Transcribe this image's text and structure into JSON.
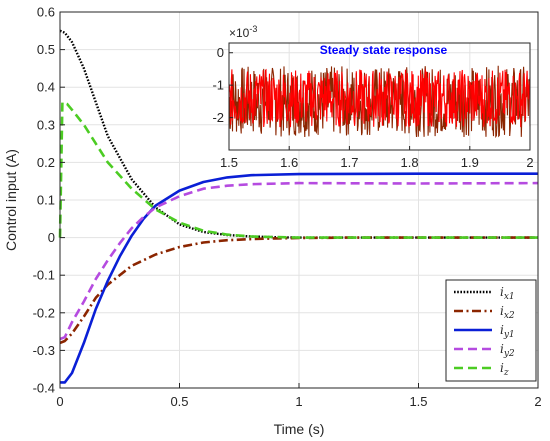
{
  "chart_data": [
    {
      "type": "line",
      "xlabel": "Time (s)",
      "ylabel": "Control input (A)",
      "xlim": [
        0,
        2
      ],
      "ylim": [
        -0.4,
        0.6
      ],
      "xticks": [
        "0",
        "0.5",
        "1",
        "1.5",
        "2"
      ],
      "yticks": [
        "-0.4",
        "-0.3",
        "-0.2",
        "-0.1",
        "0",
        "0.1",
        "0.2",
        "0.3",
        "0.4",
        "0.5",
        "0.6"
      ],
      "grid": true,
      "legend_position": "bottom-right",
      "series": [
        {
          "name": "i_x1",
          "label_main": "i",
          "label_sub": "x1",
          "color": "#000000",
          "style": "dotted",
          "x": [
            0,
            0.02,
            0.05,
            0.1,
            0.15,
            0.2,
            0.3,
            0.4,
            0.5,
            0.6,
            0.7,
            0.8,
            0.9,
            1.0,
            1.2,
            1.5,
            2.0
          ],
          "y": [
            0.55,
            0.545,
            0.52,
            0.45,
            0.36,
            0.27,
            0.155,
            0.08,
            0.035,
            0.015,
            0.007,
            0.003,
            0.001,
            0,
            0,
            0,
            0
          ]
        },
        {
          "name": "i_x2",
          "label_main": "i",
          "label_sub": "x2",
          "color": "#8b2500",
          "style": "dashdot",
          "x": [
            0,
            0.02,
            0.05,
            0.1,
            0.15,
            0.2,
            0.3,
            0.4,
            0.5,
            0.6,
            0.7,
            0.8,
            0.9,
            1.0,
            1.2,
            1.5,
            2.0
          ],
          "y": [
            -0.28,
            -0.275,
            -0.255,
            -0.21,
            -0.16,
            -0.125,
            -0.075,
            -0.045,
            -0.025,
            -0.013,
            -0.007,
            -0.004,
            -0.002,
            -0.001,
            0,
            0,
            0
          ]
        },
        {
          "name": "i_y1",
          "label_main": "i",
          "label_sub": "y1",
          "color": "#0a1fd6",
          "style": "solid",
          "x": [
            0,
            0.02,
            0.05,
            0.1,
            0.15,
            0.2,
            0.25,
            0.3,
            0.35,
            0.4,
            0.5,
            0.6,
            0.7,
            0.8,
            1.0,
            1.5,
            2.0
          ],
          "y": [
            -0.385,
            -0.385,
            -0.36,
            -0.28,
            -0.19,
            -0.115,
            -0.05,
            0.005,
            0.05,
            0.085,
            0.125,
            0.148,
            0.16,
            0.166,
            0.169,
            0.17,
            0.17
          ]
        },
        {
          "name": "i_y2",
          "label_main": "i",
          "label_sub": "y2",
          "color": "#b54be0",
          "style": "dashed",
          "x": [
            0,
            0.02,
            0.05,
            0.1,
            0.15,
            0.2,
            0.25,
            0.3,
            0.35,
            0.4,
            0.5,
            0.6,
            0.7,
            0.8,
            1.0,
            1.5,
            2.0
          ],
          "y": [
            -0.27,
            -0.265,
            -0.225,
            -0.17,
            -0.11,
            -0.06,
            -0.015,
            0.025,
            0.055,
            0.08,
            0.11,
            0.13,
            0.138,
            0.142,
            0.145,
            0.144,
            0.145
          ]
        },
        {
          "name": "i_z",
          "label_main": "i",
          "label_sub": "z",
          "color": "#4ccc23",
          "style": "dashed",
          "x": [
            0,
            0.01,
            0.03,
            0.05,
            0.1,
            0.15,
            0.2,
            0.3,
            0.4,
            0.5,
            0.6,
            0.7,
            0.8,
            1.0,
            1.2,
            1.5,
            2.0
          ],
          "y": [
            0,
            0.36,
            0.355,
            0.34,
            0.3,
            0.25,
            0.2,
            0.13,
            0.075,
            0.04,
            0.018,
            0.008,
            0.003,
            0,
            0,
            0,
            0
          ]
        }
      ]
    },
    {
      "type": "line",
      "title": "Steady state response",
      "title_color": "#0000ff",
      "y_multiplier": "×10",
      "y_multiplier_exp": "-3",
      "xlim": [
        1.5,
        2
      ],
      "ylim": [
        -3,
        0.3
      ],
      "xticks": [
        "1.5",
        "1.6",
        "1.7",
        "1.8",
        "1.9",
        "2"
      ],
      "yticks": [
        "0",
        "-1",
        "-2"
      ],
      "grid": true,
      "series": [
        {
          "color": "#ff0000",
          "style": "solid",
          "mean": -1.4,
          "amplitude": 0.9
        },
        {
          "color": "#8b2500",
          "style": "solid",
          "mean": -1.5,
          "amplitude": 1.1
        }
      ]
    }
  ]
}
